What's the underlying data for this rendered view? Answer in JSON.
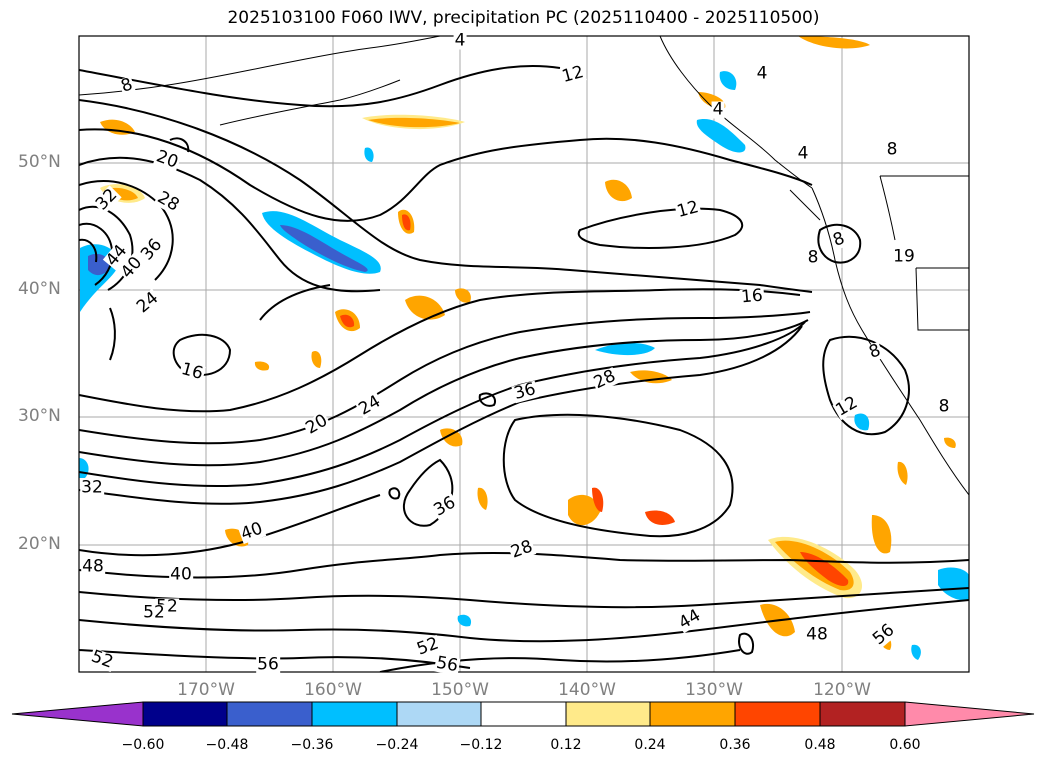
{
  "title": "2025103100 F060 IWV, precipitation PC (2025110400 - 2025110500)",
  "map": {
    "lat_labels": [
      "50°N",
      "40°N",
      "30°N",
      "20°N"
    ],
    "lon_labels": [
      "170°W",
      "160°W",
      "150°W",
      "140°W",
      "130°W",
      "120°W"
    ],
    "contour_labels": [
      "8",
      "12",
      "4",
      "4",
      "8",
      "4",
      "4",
      "20",
      "28",
      "32",
      "36",
      "44",
      "40",
      "24",
      "16",
      "12",
      "16",
      "8",
      "12",
      "8",
      "19",
      "8",
      "8",
      "20",
      "24",
      "36",
      "28",
      "36",
      "32",
      "40",
      "28",
      "48",
      "40",
      "52",
      "52",
      "52",
      "56",
      "52",
      "56",
      "44",
      "48",
      "56"
    ],
    "contour_line_color": "#000000",
    "grid": true
  },
  "colorbar": {
    "ticks": [
      "−0.60",
      "−0.48",
      "−0.36",
      "−0.24",
      "−0.12",
      "0.12",
      "0.24",
      "0.36",
      "0.48",
      "0.60"
    ],
    "colors": [
      "#9932cc",
      "#00008b",
      "#3a5fcd",
      "#00bfff",
      "#add8f5",
      "#ffffff",
      "#ffea8a",
      "#ffa500",
      "#ff4500",
      "#b22222",
      "#ff8aaa"
    ]
  }
}
